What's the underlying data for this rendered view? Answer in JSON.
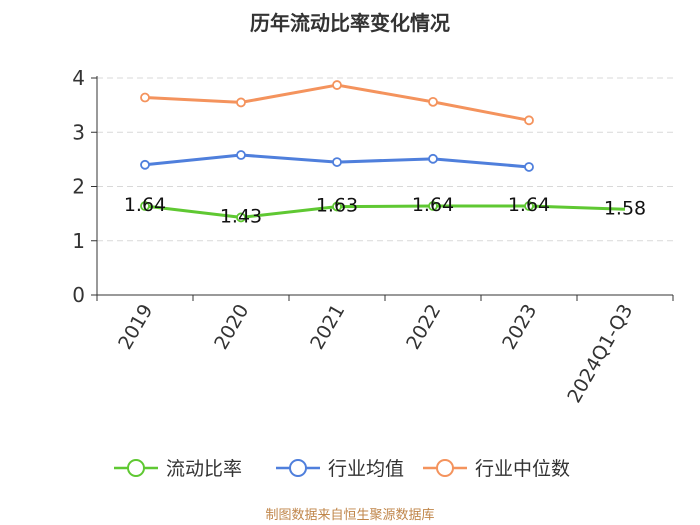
{
  "chart_data": {
    "type": "line",
    "title": "历年流动比率变化情况",
    "categories": [
      "2019",
      "2020",
      "2021",
      "2022",
      "2023",
      "2024Q1-Q3"
    ],
    "ylim": [
      0,
      4
    ],
    "yticks": [
      0,
      1,
      2,
      3,
      4
    ],
    "grid": true,
    "legend_position": "bottom",
    "series": [
      {
        "name": "流动比率",
        "color": "#5fc832",
        "values": [
          1.64,
          1.43,
          1.63,
          1.64,
          1.64,
          1.58
        ],
        "labels": [
          "1.64",
          "1.43",
          "1.63",
          "1.64",
          "1.64",
          "1.58"
        ],
        "markers": [
          true,
          true,
          true,
          true,
          true,
          false
        ]
      },
      {
        "name": "行业均值",
        "color": "#4f7fdc",
        "values": [
          2.4,
          2.58,
          2.45,
          2.51,
          2.36,
          null
        ],
        "markers": [
          true,
          true,
          true,
          true,
          true,
          false
        ]
      },
      {
        "name": "行业中位数",
        "color": "#f4935d",
        "values": [
          3.64,
          3.55,
          3.87,
          3.56,
          3.22,
          null
        ],
        "markers": [
          true,
          true,
          true,
          true,
          true,
          false
        ]
      }
    ]
  },
  "source": "制图数据来自恒生聚源数据库"
}
